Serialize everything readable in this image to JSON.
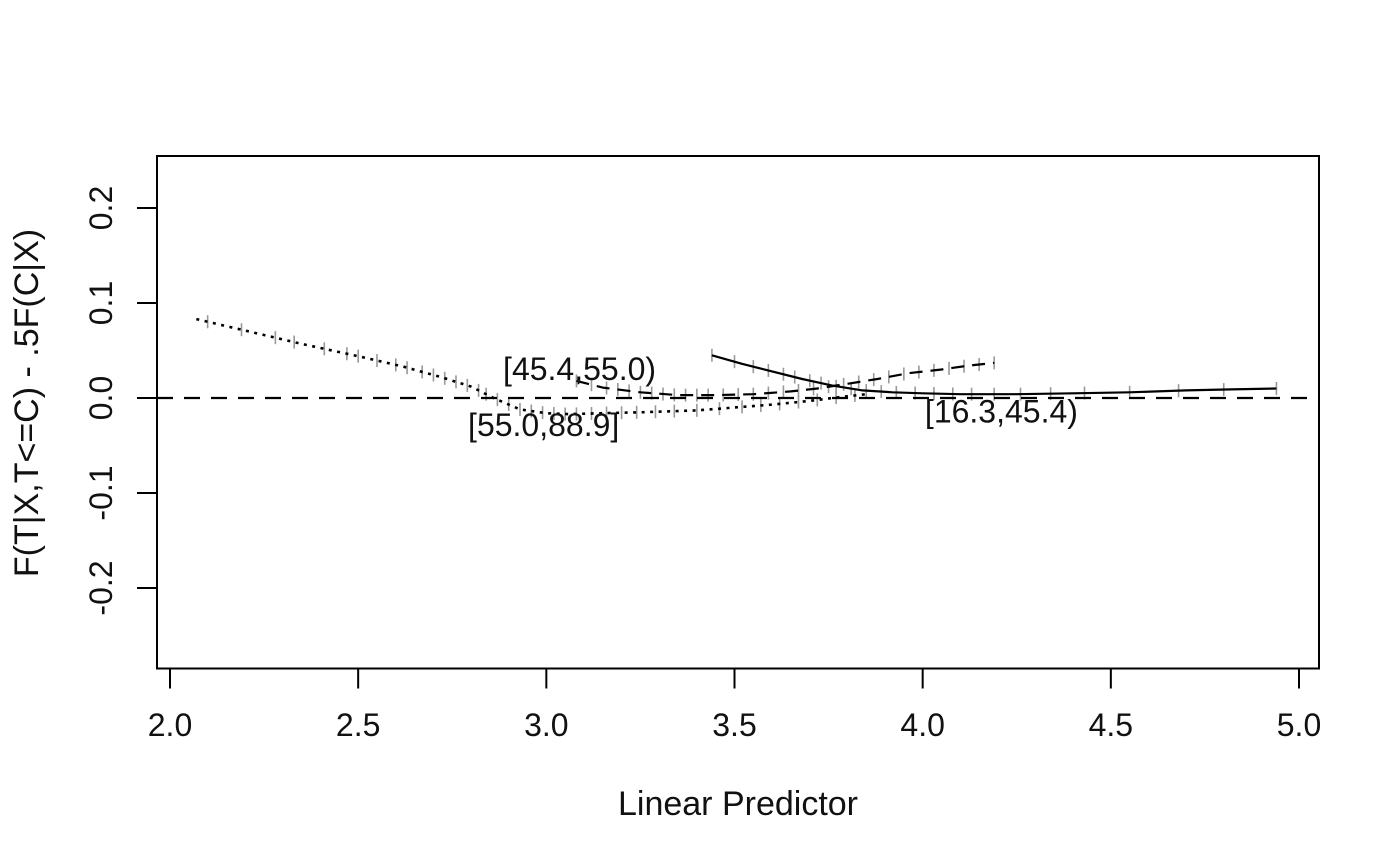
{
  "chart_data": {
    "type": "line",
    "title": "",
    "xlabel": "Linear Predictor",
    "ylabel": "F(T|X,T<=C) - .5F(C|X)",
    "x_ticks": [
      "2.0",
      "2.5",
      "3.0",
      "3.5",
      "4.0",
      "4.5",
      "5.0"
    ],
    "x_tick_values": [
      2.0,
      2.5,
      3.0,
      3.5,
      4.0,
      4.5,
      5.0
    ],
    "y_ticks": [
      "0.2",
      "0.1",
      "0.0",
      "-0.1",
      "-0.2"
    ],
    "y_tick_values": [
      0.2,
      0.1,
      0.0,
      -0.1,
      -0.2
    ],
    "xlim": [
      1.965,
      5.053
    ],
    "ylim": [
      -0.285,
      0.255
    ],
    "grid": "off",
    "legend": "labels-on-curves",
    "colors": {
      "line": "#000000",
      "rug": "#999999",
      "text": "#111111"
    },
    "reference_line": {
      "y": 0.0,
      "style": "dashed"
    },
    "series": [
      {
        "name": "[55.0,88.9]",
        "style": "dotted",
        "points": [
          [
            2.07,
            0.083
          ],
          [
            2.2,
            0.071
          ],
          [
            2.35,
            0.057
          ],
          [
            2.5,
            0.044
          ],
          [
            2.62,
            0.033
          ],
          [
            2.72,
            0.022
          ],
          [
            2.8,
            0.012
          ],
          [
            2.86,
            0.0
          ],
          [
            2.93,
            -0.012
          ],
          [
            3.0,
            -0.016
          ],
          [
            3.06,
            -0.017
          ],
          [
            3.15,
            -0.016
          ],
          [
            3.25,
            -0.015
          ],
          [
            3.4,
            -0.013
          ],
          [
            3.5,
            -0.01
          ],
          [
            3.6,
            -0.007
          ],
          [
            3.7,
            -0.003
          ],
          [
            3.78,
            0.001
          ],
          [
            3.85,
            0.004
          ]
        ],
        "rug_x": [
          2.1,
          2.19,
          2.28,
          2.33,
          2.41,
          2.47,
          2.5,
          2.55,
          2.6,
          2.63,
          2.67,
          2.7,
          2.73,
          2.76,
          2.79,
          2.82,
          2.84,
          2.87,
          2.9,
          2.93,
          2.96,
          2.99,
          3.02,
          3.05,
          3.08,
          3.12,
          3.16,
          3.2,
          3.24,
          3.29,
          3.34,
          3.4,
          3.46,
          3.52,
          3.57,
          3.62,
          3.67,
          3.72,
          3.77,
          3.82
        ]
      },
      {
        "name": "[45.4,55.0)",
        "style": "dashed",
        "points": [
          [
            3.08,
            0.018
          ],
          [
            3.15,
            0.011
          ],
          [
            3.25,
            0.006
          ],
          [
            3.35,
            0.003
          ],
          [
            3.45,
            0.003
          ],
          [
            3.55,
            0.004
          ],
          [
            3.65,
            0.007
          ],
          [
            3.72,
            0.01
          ],
          [
            3.8,
            0.015
          ],
          [
            3.88,
            0.02
          ],
          [
            3.96,
            0.026
          ],
          [
            4.05,
            0.03
          ],
          [
            4.12,
            0.034
          ],
          [
            4.19,
            0.037
          ]
        ],
        "rug_x": [
          3.08,
          3.12,
          3.16,
          3.19,
          3.22,
          3.25,
          3.28,
          3.31,
          3.34,
          3.37,
          3.4,
          3.43,
          3.47,
          3.51,
          3.55,
          3.59,
          3.63,
          3.67,
          3.71,
          3.75,
          3.79,
          3.83,
          3.87,
          3.91,
          3.95,
          3.99,
          4.03,
          4.07,
          4.11,
          4.15,
          4.19
        ]
      },
      {
        "name": "[16.3,45.4)",
        "style": "solid",
        "points": [
          [
            3.44,
            0.045
          ],
          [
            3.52,
            0.036
          ],
          [
            3.6,
            0.028
          ],
          [
            3.68,
            0.02
          ],
          [
            3.76,
            0.013
          ],
          [
            3.84,
            0.008
          ],
          [
            3.92,
            0.006
          ],
          [
            4.0,
            0.005
          ],
          [
            4.1,
            0.004
          ],
          [
            4.25,
            0.004
          ],
          [
            4.4,
            0.005
          ],
          [
            4.55,
            0.006
          ],
          [
            4.7,
            0.008
          ],
          [
            4.82,
            0.009
          ],
          [
            4.94,
            0.01
          ]
        ],
        "rug_x": [
          3.44,
          3.5,
          3.55,
          3.59,
          3.63,
          3.66,
          3.7,
          3.73,
          3.77,
          3.81,
          3.85,
          3.89,
          3.93,
          3.98,
          4.03,
          4.08,
          4.13,
          4.19,
          4.26,
          4.34,
          4.43,
          4.55,
          4.68,
          4.8,
          4.94
        ]
      }
    ],
    "curve_labels": [
      {
        "text": "[45.4,55.0)",
        "x": 2.885,
        "y": 0.019
      },
      {
        "text": "[55.0,88.9]",
        "x": 2.792,
        "y": -0.04
      },
      {
        "text": "[16.3,45.4)",
        "x": 4.006,
        "y": -0.026
      }
    ]
  }
}
